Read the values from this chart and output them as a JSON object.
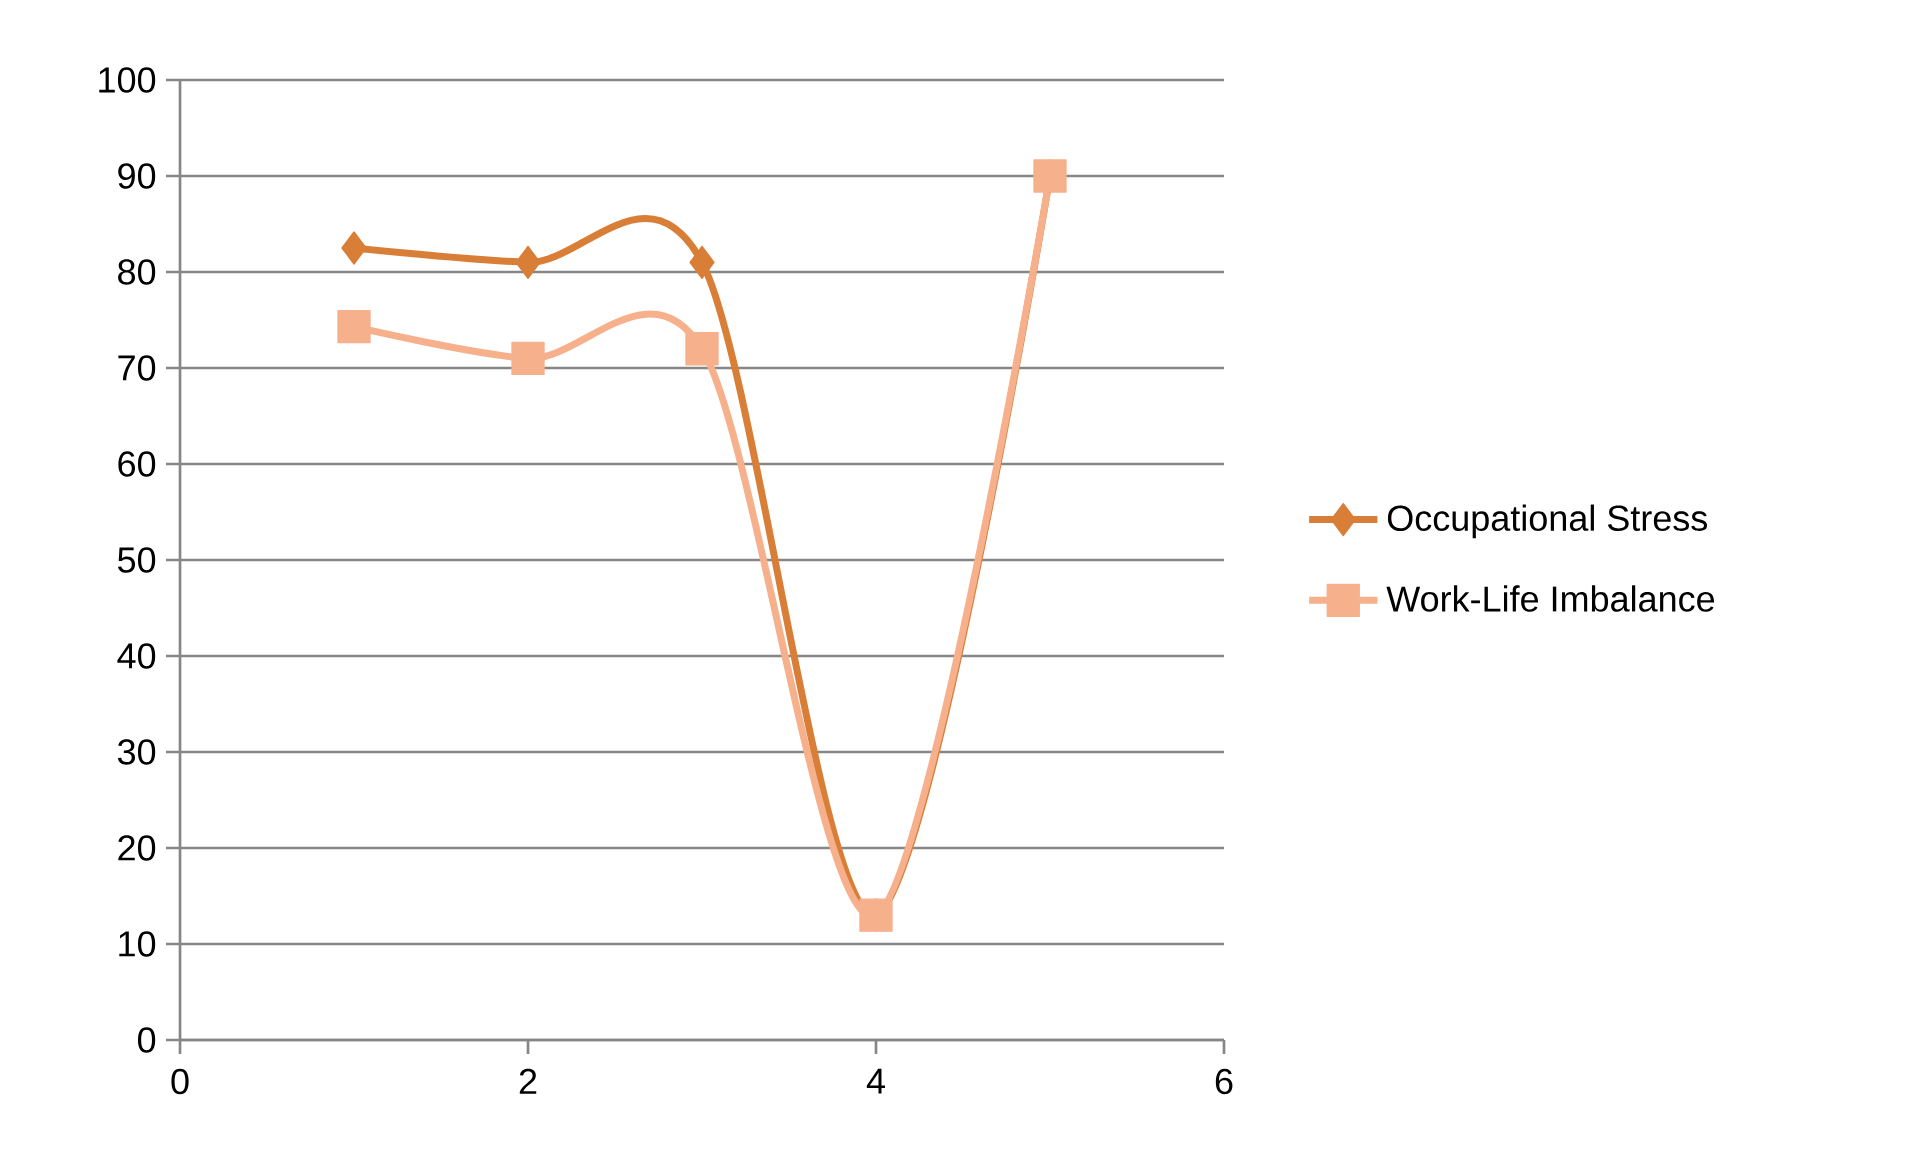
{
  "chart_data": {
    "type": "line",
    "x": [
      1,
      2,
      3,
      4,
      5
    ],
    "series": [
      {
        "name": "Occupational Stress",
        "color": "#d97e37",
        "marker": "diamond",
        "values": [
          82.5,
          81,
          81,
          13,
          90
        ]
      },
      {
        "name": "Work-Life Imbalance",
        "color": "#f6b08c",
        "marker": "square",
        "values": [
          74.3,
          71,
          72,
          13,
          90
        ]
      }
    ],
    "xlim": [
      0,
      6
    ],
    "xticks": [
      0,
      2,
      4,
      6
    ],
    "ylim": [
      0,
      100
    ],
    "yticks": [
      0,
      10,
      20,
      30,
      40,
      50,
      60,
      70,
      80,
      90,
      100
    ],
    "grid": "y",
    "legend": "right",
    "line_style": "solid"
  }
}
